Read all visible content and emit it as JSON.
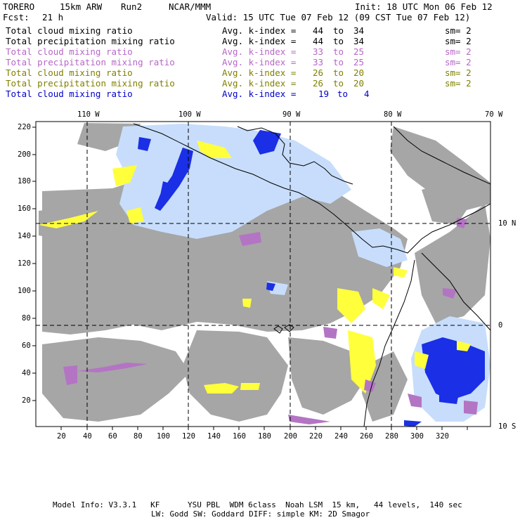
{
  "header": {
    "model": "TORERO",
    "resolution": "15km ARW",
    "run": "Run2",
    "org": "NCAR/MMM",
    "init": "Init: 18 UTC Mon 06 Feb 12",
    "fcst_label": "Fcst:",
    "fcst_value": "21 h",
    "valid": "Valid: 15 UTC Tue 07 Feb 12 (09 CST Tue 07 Feb 12)"
  },
  "legend": [
    {
      "field": "Total cloud mixing ratio",
      "kindex_label": "Avg. k-index =",
      "k_from": "44",
      "to": "to",
      "k_to": "34",
      "sm": "sm= 2",
      "color": "#000000"
    },
    {
      "field": "Total precipitation mixing ratio",
      "kindex_label": "Avg. k-index =",
      "k_from": "44",
      "to": "to",
      "k_to": "34",
      "sm": "sm= 2",
      "color": "#000000"
    },
    {
      "field": "Total cloud mixing ratio",
      "kindex_label": "Avg. k-index =",
      "k_from": "33",
      "to": "to",
      "k_to": "25",
      "sm": "sm= 2",
      "color": "#b866c8"
    },
    {
      "field": "Total precipitation mixing ratio",
      "kindex_label": "Avg. k-index =",
      "k_from": "33",
      "to": "to",
      "k_to": "25",
      "sm": "sm= 2",
      "color": "#b866c8"
    },
    {
      "field": "Total cloud mixing ratio",
      "kindex_label": "Avg. k-index =",
      "k_from": "26",
      "to": "to",
      "k_to": "20",
      "sm": "sm= 2",
      "color": "#808000"
    },
    {
      "field": "Total precipitation mixing ratio",
      "kindex_label": "Avg. k-index =",
      "k_from": "26",
      "to": "to",
      "k_to": "20",
      "sm": "sm= 2",
      "color": "#808000"
    },
    {
      "field": "Total cloud mixing ratio",
      "kindex_label": "Avg. k-index =",
      "k_from": "19",
      "to": "to",
      "k_to": "4",
      "sm": "",
      "color": "#0000cc"
    }
  ],
  "map": {
    "lon_labels": [
      "110 W",
      "100 W",
      "90 W",
      "80 W",
      "70 W"
    ],
    "lat_labels": [
      "10 N",
      "0",
      "10 S"
    ],
    "x_ticks": [
      "20",
      "40",
      "60",
      "80",
      "100",
      "120",
      "140",
      "160",
      "180",
      "200",
      "220",
      "240",
      "260",
      "280",
      "300",
      "320"
    ],
    "y_ticks": [
      "220",
      "200",
      "180",
      "160",
      "140",
      "120",
      "100",
      "80",
      "60",
      "40",
      "20"
    ],
    "colors": {
      "gray": "#a0a0a0",
      "purple": "#b070c0",
      "yellow": "#ffff40",
      "lightblue": "#cce4ff",
      "blue": "#0020e0",
      "coast": "#000000"
    }
  },
  "footer": {
    "line1": "Model Info: V3.3.1   KF      YSU PBL  WDM 6class  Noah LSM  15 km,   44 levels,  140 sec",
    "line2": "LW: Godd SW: Goddard DIFF: simple KM: 2D Smagor"
  }
}
